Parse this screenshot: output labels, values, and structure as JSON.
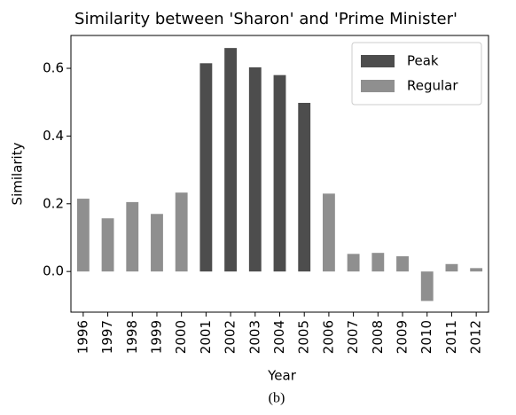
{
  "chart_data": {
    "type": "bar",
    "title": "Similarity between 'Sharon' and 'Prime Minister'",
    "x_label": "Year",
    "y_label": "Similarity",
    "caption": "(b)",
    "categories": [
      "1996",
      "1997",
      "1998",
      "1999",
      "2000",
      "2001",
      "2002",
      "2003",
      "2004",
      "2005",
      "2006",
      "2007",
      "2008",
      "2009",
      "2010",
      "2011",
      "2012"
    ],
    "series": [
      {
        "name": "Peak",
        "color": "#4d4d4d",
        "values": [
          null,
          null,
          null,
          null,
          null,
          0.615,
          0.66,
          0.603,
          0.58,
          0.498,
          null,
          null,
          null,
          null,
          null,
          null,
          null
        ]
      },
      {
        "name": "Regular",
        "color": "#8f8f8f",
        "values": [
          0.215,
          0.157,
          0.205,
          0.17,
          0.233,
          null,
          null,
          null,
          null,
          null,
          0.23,
          0.052,
          0.055,
          0.045,
          -0.087,
          0.022,
          0.01
        ]
      }
    ],
    "ylim": [
      -0.12,
      0.697
    ],
    "yticks": [
      {
        "value": 0,
        "label": "0.0"
      },
      0.2,
      0.4,
      0.6
    ],
    "legend": "upper right"
  }
}
